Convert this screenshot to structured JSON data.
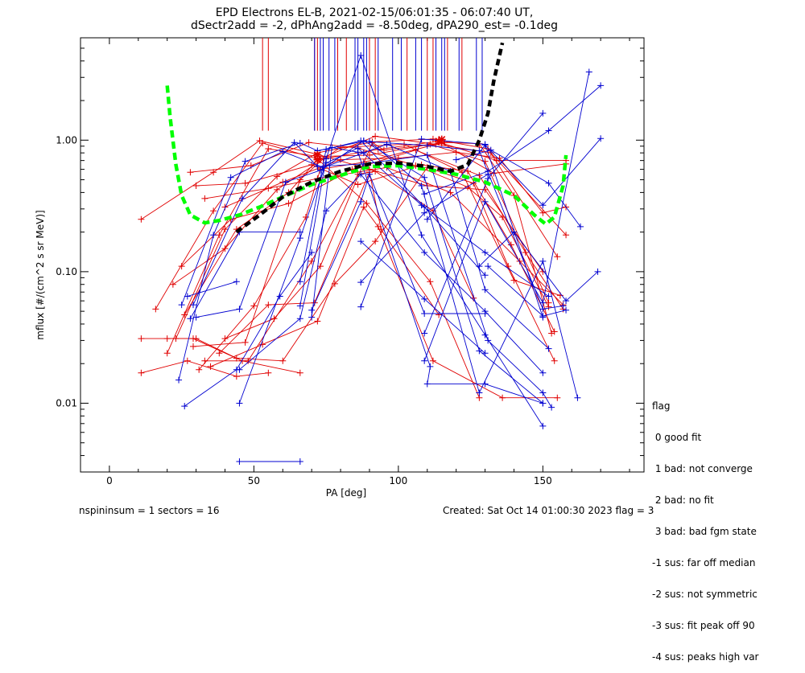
{
  "title": {
    "line1": "EPD Electrons EL-B, 2021-02-15/06:01:35 - 06:07:40 UT,",
    "line2": "dSectr2add = -2, dPhAng2add = -8.50deg, dPA290_est=  -0.1deg"
  },
  "footer": {
    "left": "nspininsum =  1  sectors = 16",
    "right": "Created: Sat Oct 14 01:00:30 2023   flag = 3"
  },
  "legend": {
    "title": "flag",
    "items": [
      " 0 good fit",
      " 1 bad: not converge",
      " 2 bad: no fit",
      " 3 bad: bad fgm state",
      "-1 sus: far off median",
      "-2 sus: not symmetric",
      "-3 sus: fit peak off 90",
      "-4 sus: peaks high var"
    ]
  },
  "chart_data": {
    "type": "line",
    "xlabel": "PA [deg]",
    "ylabel": "mflux [#/(cm^2 s sr MeV)]",
    "xlim": [
      -10,
      185
    ],
    "ylim": [
      0.003,
      6.0
    ],
    "yscale": "log",
    "x_ticks": [
      0,
      50,
      100,
      150
    ],
    "x_tick_labels": [
      "0",
      "50",
      "100",
      "150"
    ],
    "y_ticks": [
      0.01,
      0.1,
      1.0
    ],
    "y_tick_labels": [
      "0.01",
      "0.10",
      "1.00"
    ],
    "colors": {
      "red": "#e00000",
      "blue": "#0000d0",
      "green": "#00ff00",
      "black": "#000000"
    },
    "red_sweeps": [
      [
        [
          11,
          0.017
        ],
        [
          27,
          0.021
        ],
        [
          44,
          0.016
        ],
        [
          55,
          0.017
        ]
      ],
      [
        [
          11,
          0.031
        ],
        [
          29,
          0.031
        ],
        [
          46,
          0.021
        ],
        [
          66,
          0.017
        ]
      ],
      [
        [
          16,
          0.052
        ],
        [
          36,
          0.29
        ],
        [
          53,
          0.95
        ],
        [
          72,
          0.72
        ],
        [
          89,
          0.33
        ],
        [
          111,
          0.084
        ],
        [
          128,
          0.011
        ]
      ],
      [
        [
          11,
          0.25
        ],
        [
          36,
          0.57
        ],
        [
          52,
          0.99
        ],
        [
          72,
          0.78
        ],
        [
          90,
          0.6
        ],
        [
          110,
          0.45
        ],
        [
          130,
          0.42
        ],
        [
          150,
          0.1
        ]
      ],
      [
        [
          20,
          0.024
        ],
        [
          38,
          0.19
        ],
        [
          55,
          0.86
        ],
        [
          72,
          0.75
        ],
        [
          90,
          0.77
        ],
        [
          111,
          0.93
        ],
        [
          130,
          0.69
        ],
        [
          152,
          0.058
        ]
      ],
      [
        [
          23,
          0.031
        ],
        [
          40,
          0.21
        ],
        [
          58,
          0.53
        ],
        [
          72,
          0.8
        ],
        [
          91,
          0.97
        ],
        [
          112,
          1.02
        ],
        [
          131,
          0.86
        ],
        [
          155,
          0.13
        ]
      ],
      [
        [
          26,
          0.047
        ],
        [
          44,
          0.21
        ],
        [
          62,
          0.4
        ],
        [
          72,
          0.71
        ],
        [
          92,
          1.07
        ],
        [
          113,
          0.93
        ],
        [
          132,
          0.8
        ],
        [
          158,
          0.19
        ]
      ],
      [
        [
          29,
          0.027
        ],
        [
          47,
          0.029
        ],
        [
          66,
          0.5
        ],
        [
          74,
          0.72
        ],
        [
          93,
          0.85
        ],
        [
          114,
          0.98
        ],
        [
          133,
          0.56
        ],
        [
          158,
          0.66
        ]
      ],
      [
        [
          31,
          0.018
        ],
        [
          50,
          0.055
        ],
        [
          68,
          0.26
        ],
        [
          73,
          0.6
        ],
        [
          88,
          0.68
        ],
        [
          115,
          0.95
        ],
        [
          134,
          0.7
        ],
        [
          158,
          0.7
        ]
      ],
      [
        [
          33,
          0.021
        ],
        [
          48,
          0.021
        ],
        [
          70,
          0.12
        ],
        [
          86,
          0.55
        ],
        [
          92,
          0.58
        ],
        [
          112,
          0.29
        ],
        [
          126,
          0.063
        ]
      ],
      [
        [
          35,
          0.019
        ],
        [
          53,
          0.028
        ],
        [
          72,
          0.042
        ],
        [
          88,
          0.31
        ],
        [
          93,
          0.22
        ],
        [
          112,
          0.021
        ],
        [
          136,
          0.011
        ],
        [
          155,
          0.011
        ]
      ],
      [
        [
          38,
          0.024
        ],
        [
          55,
          0.056
        ],
        [
          71,
          0.058
        ],
        [
          90,
          0.57
        ],
        [
          94,
          0.21
        ],
        [
          114,
          0.047
        ]
      ],
      [
        [
          40,
          0.031
        ],
        [
          57,
          0.044
        ],
        [
          73,
          0.11
        ],
        [
          91,
          0.96
        ],
        [
          95,
          0.84
        ],
        [
          116,
          0.96
        ],
        [
          128,
          0.94
        ],
        [
          140,
          0.38
        ],
        [
          153,
          0.034
        ]
      ],
      [
        [
          28,
          0.57
        ],
        [
          49,
          0.64
        ],
        [
          69,
          0.96
        ],
        [
          86,
          0.87
        ],
        [
          106,
          0.64
        ],
        [
          124,
          0.44
        ],
        [
          136,
          0.26
        ],
        [
          152,
          0.054
        ]
      ],
      [
        [
          30,
          0.45
        ],
        [
          47,
          0.47
        ],
        [
          70,
          0.65
        ],
        [
          86,
          0.46
        ],
        [
          108,
          0.65
        ],
        [
          124,
          0.58
        ],
        [
          139,
          0.16
        ],
        [
          154,
          0.035
        ]
      ],
      [
        [
          20,
          0.031
        ],
        [
          30,
          0.031
        ],
        [
          44,
          0.022
        ],
        [
          60,
          0.021
        ],
        [
          78,
          0.081
        ],
        [
          92,
          0.17
        ],
        [
          110,
          0.62
        ],
        [
          126,
          0.47
        ],
        [
          138,
          0.11
        ],
        [
          154,
          0.021
        ]
      ],
      [
        [
          40,
          0.31
        ],
        [
          60,
          0.48
        ],
        [
          80,
          0.71
        ],
        [
          100,
          0.73
        ],
        [
          120,
          0.81
        ],
        [
          135,
          0.73
        ],
        [
          150,
          0.28
        ],
        [
          158,
          0.31
        ]
      ],
      [
        [
          33,
          0.36
        ],
        [
          55,
          0.43
        ],
        [
          72,
          0.51
        ],
        [
          96,
          0.62
        ],
        [
          118,
          0.4
        ],
        [
          142,
          0.12
        ],
        [
          157,
          0.056
        ]
      ],
      [
        [
          25,
          0.11
        ],
        [
          42,
          0.25
        ],
        [
          62,
          0.33
        ],
        [
          84,
          0.6
        ],
        [
          106,
          0.84
        ],
        [
          128,
          0.54
        ],
        [
          144,
          0.14
        ],
        [
          157,
          0.052
        ]
      ],
      [
        [
          22,
          0.08
        ],
        [
          40,
          0.15
        ],
        [
          58,
          0.42
        ],
        [
          80,
          0.88
        ],
        [
          102,
          0.93
        ],
        [
          122,
          0.57
        ],
        [
          140,
          0.086
        ],
        [
          156,
          0.066
        ]
      ]
    ],
    "blue_sweeps": [
      [
        [
          26,
          0.0095
        ],
        [
          44,
          0.018
        ],
        [
          59,
          0.065
        ],
        [
          70,
          0.14
        ]
      ],
      [
        [
          24,
          0.015
        ],
        [
          36,
          0.19
        ],
        [
          47,
          0.69
        ],
        [
          66,
          0.95
        ],
        [
          72,
          0.83
        ],
        [
          88,
          0.98
        ],
        [
          110,
          0.91
        ],
        [
          128,
          0.83
        ],
        [
          150,
          0.052
        ],
        [
          157,
          0.055
        ]
      ],
      [
        [
          25,
          0.056
        ],
        [
          42,
          0.52
        ],
        [
          60,
          0.82
        ],
        [
          74,
          0.62
        ],
        [
          88,
          0.8
        ],
        [
          96,
          0.93
        ],
        [
          118,
          0.58
        ],
        [
          130,
          0.073
        ],
        [
          152,
          0.026
        ]
      ],
      [
        [
          27,
          0.065
        ],
        [
          44,
          0.084
        ]
      ],
      [
        [
          28,
          0.044
        ],
        [
          45,
          0.2
        ],
        [
          66,
          0.2
        ]
      ],
      [
        [
          29,
          0.056
        ],
        [
          46,
          0.36
        ],
        [
          64,
          0.96
        ],
        [
          72,
          0.63
        ],
        [
          88,
          0.66
        ],
        [
          110,
          0.77
        ],
        [
          131,
          0.03
        ],
        [
          150,
          0.012
        ],
        [
          153,
          0.0093
        ]
      ],
      [
        [
          30,
          0.045
        ],
        [
          45,
          0.052
        ],
        [
          61,
          0.48
        ],
        [
          73,
          0.59
        ],
        [
          88,
          0.99
        ],
        [
          109,
          0.52
        ],
        [
          128,
          0.025
        ],
        [
          150,
          0.01
        ]
      ],
      [
        [
          45,
          0.0036
        ],
        [
          66,
          0.0036
        ]
      ],
      [
        [
          45,
          0.01
        ],
        [
          66,
          0.18
        ],
        [
          75,
          0.67
        ],
        [
          86,
          0.87
        ],
        [
          108,
          0.32
        ],
        [
          130,
          0.14
        ],
        [
          152,
          0.065
        ]
      ],
      [
        [
          45,
          0.018
        ],
        [
          66,
          0.044
        ],
        [
          75,
          0.29
        ],
        [
          87,
          0.55
        ],
        [
          109,
          0.14
        ],
        [
          130,
          0.05
        ],
        [
          150,
          0.017
        ]
      ],
      [
        [
          66,
          0.055
        ],
        [
          75,
          0.72
        ],
        [
          87,
          4.4
        ],
        [
          108,
          0.19
        ],
        [
          130,
          0.033
        ],
        [
          150,
          0.0067
        ]
      ],
      [
        [
          66,
          0.084
        ],
        [
          75,
          0.85
        ],
        [
          87,
          0.99
        ],
        [
          109,
          0.31
        ],
        [
          130,
          0.094
        ]
      ],
      [
        [
          70,
          0.045
        ],
        [
          77,
          0.88
        ],
        [
          86,
          0.81
        ],
        [
          111,
          0.019
        ],
        [
          110,
          0.014
        ],
        [
          130,
          0.014
        ],
        [
          150,
          0.01
        ]
      ],
      [
        [
          70,
          0.051
        ],
        [
          87,
          0.34
        ],
        [
          90,
          0.55
        ],
        [
          109,
          0.048
        ],
        [
          130,
          0.048
        ]
      ],
      [
        [
          87,
          0.054
        ],
        [
          108,
          1.02
        ],
        [
          130,
          0.93
        ],
        [
          150,
          0.045
        ]
      ],
      [
        [
          87,
          0.083
        ],
        [
          109,
          0.28
        ],
        [
          131,
          0.55
        ]
      ],
      [
        [
          87,
          0.17
        ],
        [
          109,
          0.062
        ],
        [
          130,
          0.024
        ]
      ],
      [
        [
          90,
          0.98
        ],
        [
          108,
          0.45
        ],
        [
          128,
          0.012
        ],
        [
          150,
          0.12
        ],
        [
          162,
          0.011
        ]
      ],
      [
        [
          109,
          0.021
        ],
        [
          130,
          0.34
        ],
        [
          150,
          0.058
        ],
        [
          166,
          3.3
        ]
      ],
      [
        [
          109,
          0.034
        ],
        [
          131,
          0.51
        ],
        [
          150,
          1.6
        ]
      ],
      [
        [
          109,
          0.39
        ],
        [
          131,
          0.58
        ],
        [
          152,
          1.18
        ],
        [
          170,
          2.6
        ]
      ],
      [
        [
          110,
          0.25
        ],
        [
          130,
          0.92
        ],
        [
          150,
          0.32
        ],
        [
          170,
          1.03
        ]
      ],
      [
        [
          120,
          0.71
        ],
        [
          132,
          0.84
        ],
        [
          152,
          0.47
        ],
        [
          163,
          0.22
        ]
      ],
      [
        [
          128,
          0.11
        ],
        [
          140,
          0.2
        ],
        [
          158,
          0.06
        ],
        [
          169,
          0.1
        ]
      ],
      [
        [
          131,
          0.11
        ],
        [
          150,
          0.046
        ],
        [
          158,
          0.051
        ]
      ]
    ],
    "red_star_markers": [
      [
        [
          72,
          0.71
        ],
        [
          72,
          0.77
        ]
      ],
      [
        [
          114,
          0.98
        ],
        [
          115,
          1.01
        ]
      ]
    ],
    "green_fit": [
      [
        20,
        2.6
      ],
      [
        21,
        1.5
      ],
      [
        23,
        0.65
      ],
      [
        25,
        0.38
      ],
      [
        28,
        0.27
      ],
      [
        33,
        0.235
      ],
      [
        38,
        0.245
      ],
      [
        45,
        0.27
      ],
      [
        52,
        0.31
      ],
      [
        60,
        0.37
      ],
      [
        70,
        0.46
      ],
      [
        80,
        0.54
      ],
      [
        90,
        0.63
      ],
      [
        100,
        0.64
      ],
      [
        110,
        0.6
      ],
      [
        120,
        0.55
      ],
      [
        130,
        0.48
      ],
      [
        140,
        0.38
      ],
      [
        147,
        0.27
      ],
      [
        151,
        0.23
      ],
      [
        154,
        0.26
      ],
      [
        157,
        0.45
      ],
      [
        158,
        0.77
      ]
    ],
    "black_fit": [
      [
        44,
        0.2
      ],
      [
        52,
        0.27
      ],
      [
        60,
        0.37
      ],
      [
        70,
        0.48
      ],
      [
        80,
        0.58
      ],
      [
        90,
        0.66
      ],
      [
        100,
        0.67
      ],
      [
        110,
        0.63
      ],
      [
        118,
        0.58
      ],
      [
        124,
        0.65
      ],
      [
        128,
        1.0
      ],
      [
        131,
        1.6
      ],
      [
        133,
        2.8
      ],
      [
        136,
        5.5
      ]
    ],
    "red_sector_lines_x": [
      53,
      55,
      71,
      72,
      79,
      82,
      90,
      92,
      103,
      110,
      112,
      117,
      122
    ],
    "blue_sector_lines_x": [
      71,
      73,
      74,
      76,
      78,
      85,
      86,
      88,
      89,
      93,
      98,
      101,
      106,
      108,
      113,
      115,
      116,
      121,
      127,
      129
    ],
    "sector_lines_ylim": [
      1.18,
      6.0
    ]
  }
}
